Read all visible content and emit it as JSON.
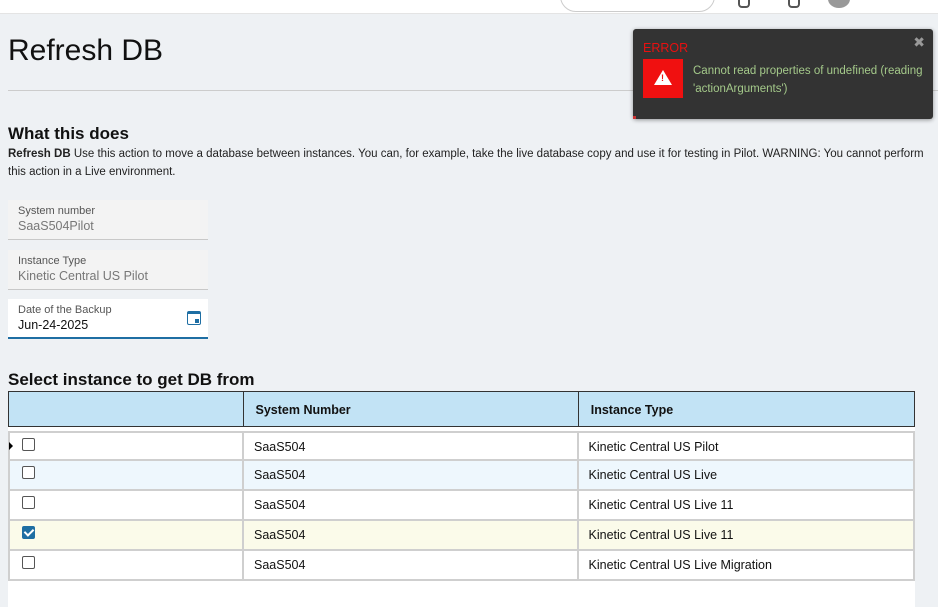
{
  "page": {
    "title": "Refresh DB"
  },
  "about": {
    "heading": "What this does",
    "lead": "Refresh DB",
    "text": " Use this action to move a database between instances. You can, for example, take the live database copy and use it for testing in Pilot. WARNING: You cannot perform this action in a Live environment."
  },
  "fields": [
    {
      "label": "System number",
      "value": "SaaS504Pilot"
    },
    {
      "label": "Instance Type",
      "value": "Kinetic Central US Pilot"
    },
    {
      "label": "Date of the Backup",
      "value": "Jun-24-2025",
      "icon": "calendar-icon"
    }
  ],
  "table": {
    "heading": "Select instance to get DB from",
    "columns": [
      "",
      "System Number",
      "Instance Type"
    ],
    "rows": [
      {
        "checked": false,
        "system": "SaaS504",
        "type": "Kinetic Central US Pilot"
      },
      {
        "checked": false,
        "system": "SaaS504",
        "type": "Kinetic Central US Live"
      },
      {
        "checked": false,
        "system": "SaaS504",
        "type": "Kinetic Central US Live 11"
      },
      {
        "checked": true,
        "system": "SaaS504",
        "type": "Kinetic Central US Live 11"
      },
      {
        "checked": false,
        "system": "SaaS504",
        "type": "Kinetic Central US Live Migration"
      }
    ]
  },
  "toast": {
    "title": "ERROR",
    "message": "Cannot read properties of undefined (reading 'actionArguments')",
    "close": "✖",
    "icon": "warning-icon"
  },
  "colors": {
    "accent": "#1e6ea3",
    "header": "#c2e3f5",
    "error": "#f01010"
  }
}
